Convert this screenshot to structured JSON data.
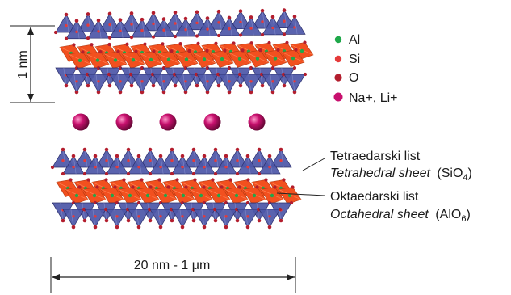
{
  "colors": {
    "tetrahedron": "#4d57a8",
    "tetra_edge": "#2b2f6b",
    "octahedron": "#f2501f",
    "octa_edge": "#b23a12",
    "al": "#1fa84a",
    "si": "#e53a3a",
    "o": "#b31e2e",
    "cation": "#c8106e"
  },
  "legend": [
    {
      "id": "al",
      "label": "Al"
    },
    {
      "id": "si",
      "label": "Si"
    },
    {
      "id": "o",
      "label": "O"
    },
    {
      "id": "cation",
      "label": "Na+, Li+"
    }
  ],
  "dimensions": {
    "layer_thickness": "1 nm",
    "lateral_size": "20 nm - 1 μm"
  },
  "annotations": {
    "tetra_hr": "Tetraedarski list",
    "tetra_en_text": "Tetrahedral sheet",
    "tetra_formula": "(SiO",
    "tetra_sub": "4",
    "octa_hr": "Oktaedarski list",
    "octa_en_text": "Octahedral sheet",
    "octa_formula": "(AlO",
    "octa_sub": "6"
  }
}
